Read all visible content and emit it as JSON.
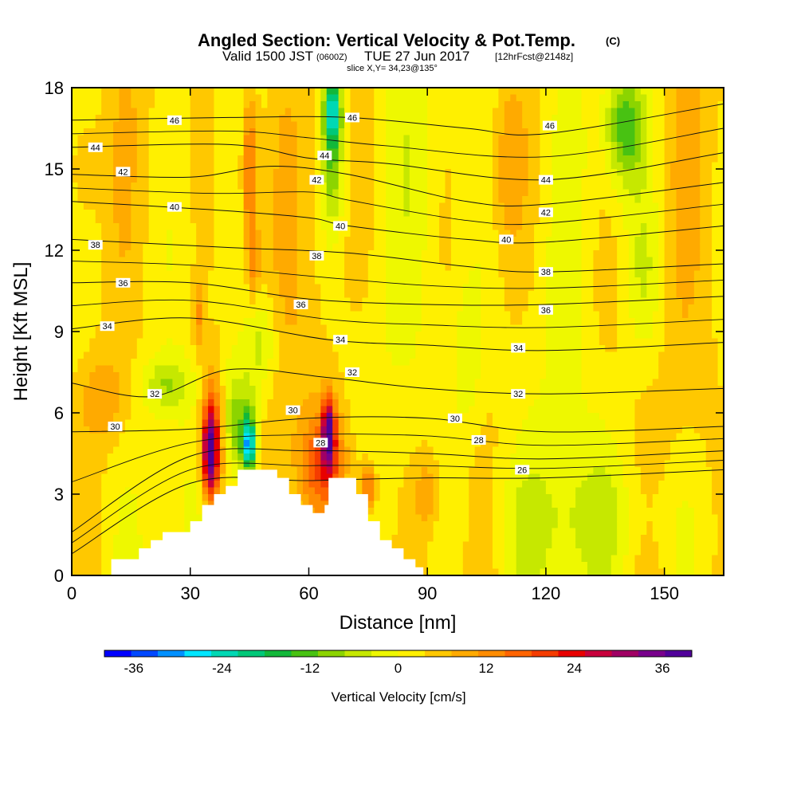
{
  "chart_data": {
    "type": "heatmap",
    "title": "Angled Section: Vertical Velocity & Pot.Temp.",
    "title_suffix": "(C)",
    "subtitle_valid": "Valid 1500 JST",
    "subtitle_zulu": "(0600Z)",
    "subtitle_date": "TUE 27 Jun 2017",
    "subtitle_fcst": "[12hrFcst@2148z]",
    "slice_label": "slice X,Y= 34,23@135°",
    "xlabel": "Distance [nm]",
    "ylabel": "Height [Kft MSL]",
    "xlim": [
      0,
      165
    ],
    "ylim": [
      0,
      18
    ],
    "x_ticks": [
      "0",
      "30",
      "60",
      "90",
      "120",
      "150"
    ],
    "y_ticks": [
      "0",
      "3",
      "6",
      "9",
      "12",
      "15",
      "18"
    ],
    "colorbar": {
      "label": "Vertical Velocity [cm/s]",
      "ticks": [
        "-36",
        "-24",
        "-12",
        "0",
        "12",
        "24",
        "36"
      ],
      "tick_values": [
        -36,
        -24,
        -12,
        0,
        12,
        24,
        36
      ],
      "range": [
        -40,
        40
      ],
      "colors": [
        "#0000ff",
        "#0048ff",
        "#0090ff",
        "#00e6ff",
        "#00d8b4",
        "#00c878",
        "#12b83a",
        "#48c212",
        "#8cd400",
        "#c6e800",
        "#eef800",
        "#fff000",
        "#ffc800",
        "#ffaa00",
        "#ff8c00",
        "#ff6400",
        "#f53c00",
        "#e80000",
        "#c8003c",
        "#a00064",
        "#78008c",
        "#50009a"
      ]
    },
    "terrain": [
      [
        0,
        0
      ],
      [
        10,
        0
      ],
      [
        10,
        0.6
      ],
      [
        17,
        0.6
      ],
      [
        17,
        1.0
      ],
      [
        20,
        1.0
      ],
      [
        20,
        1.3
      ],
      [
        23,
        1.3
      ],
      [
        23,
        1.6
      ],
      [
        30,
        1.6
      ],
      [
        30,
        2.0
      ],
      [
        33,
        2.0
      ],
      [
        33,
        2.6
      ],
      [
        36,
        2.6
      ],
      [
        36,
        3.0
      ],
      [
        39,
        3.0
      ],
      [
        39,
        3.3
      ],
      [
        42,
        3.3
      ],
      [
        42,
        3.9
      ],
      [
        52,
        3.9
      ],
      [
        52,
        3.6
      ],
      [
        55,
        3.6
      ],
      [
        55,
        3.0
      ],
      [
        58,
        3.0
      ],
      [
        58,
        2.6
      ],
      [
        61,
        2.6
      ],
      [
        61,
        2.3
      ],
      [
        64,
        2.3
      ],
      [
        64,
        2.6
      ],
      [
        65,
        2.6
      ],
      [
        65,
        3.6
      ],
      [
        72,
        3.6
      ],
      [
        72,
        3.0
      ],
      [
        75,
        3.0
      ],
      [
        75,
        2.0
      ],
      [
        78,
        2.0
      ],
      [
        78,
        1.3
      ],
      [
        81,
        1.3
      ],
      [
        81,
        1.0
      ],
      [
        84,
        1.0
      ],
      [
        84,
        0.6
      ],
      [
        87,
        0.6
      ],
      [
        87,
        0.3
      ],
      [
        89,
        0.3
      ],
      [
        89,
        0
      ],
      [
        165,
        0
      ]
    ],
    "potential_temperature": [
      {
        "value": 26,
        "points": [
          [
            0,
            0.8
          ],
          [
            30,
            3.4
          ],
          [
            60,
            3.5
          ],
          [
            90,
            3.6
          ],
          [
            120,
            3.6
          ],
          [
            165,
            3.9
          ]
        ]
      },
      {
        "value": 28,
        "points": [
          [
            0,
            1.6
          ],
          [
            30,
            4.4
          ],
          [
            60,
            4.6
          ],
          [
            90,
            4.5
          ],
          [
            120,
            4.3
          ],
          [
            165,
            4.6
          ]
        ]
      },
      {
        "value": 30,
        "points": [
          [
            0,
            5.3
          ],
          [
            30,
            5.4
          ],
          [
            60,
            5.8
          ],
          [
            90,
            5.8
          ],
          [
            120,
            5.3
          ],
          [
            165,
            5.5
          ]
        ]
      },
      {
        "value": 32,
        "points": [
          [
            0,
            7.1
          ],
          [
            20,
            6.6
          ],
          [
            40,
            7.6
          ],
          [
            65,
            7.3
          ],
          [
            90,
            6.9
          ],
          [
            120,
            6.7
          ],
          [
            165,
            6.9
          ]
        ]
      },
      {
        "value": 34,
        "points": [
          [
            0,
            9.1
          ],
          [
            30,
            9.5
          ],
          [
            65,
            8.7
          ],
          [
            90,
            8.5
          ],
          [
            120,
            8.3
          ],
          [
            165,
            8.6
          ]
        ]
      },
      {
        "value": 36,
        "points": [
          [
            0,
            10.8
          ],
          [
            30,
            10.8
          ],
          [
            60,
            10.2
          ],
          [
            90,
            10.0
          ],
          [
            120,
            10.0
          ],
          [
            165,
            10.3
          ]
        ]
      },
      {
        "value": 38,
        "points": [
          [
            0,
            12.4
          ],
          [
            40,
            12.1
          ],
          [
            70,
            11.9
          ],
          [
            100,
            11.4
          ],
          [
            120,
            11.2
          ],
          [
            165,
            11.5
          ]
        ]
      },
      {
        "value": 40,
        "points": [
          [
            0,
            13.8
          ],
          [
            35,
            13.5
          ],
          [
            60,
            13.2
          ],
          [
            70,
            12.9
          ],
          [
            100,
            12.4
          ],
          [
            120,
            12.3
          ],
          [
            165,
            12.9
          ]
        ]
      },
      {
        "value": 42,
        "points": [
          [
            0,
            14.8
          ],
          [
            30,
            14.7
          ],
          [
            50,
            15.1
          ],
          [
            70,
            14.8
          ],
          [
            100,
            13.8
          ],
          [
            120,
            13.7
          ],
          [
            165,
            14.5
          ]
        ]
      },
      {
        "value": 44,
        "points": [
          [
            0,
            15.8
          ],
          [
            40,
            15.9
          ],
          [
            60,
            15.4
          ],
          [
            80,
            15.2
          ],
          [
            120,
            14.6
          ],
          [
            165,
            15.6
          ]
        ]
      },
      {
        "value": 46,
        "points": [
          [
            0,
            16.8
          ],
          [
            40,
            16.9
          ],
          [
            70,
            16.9
          ],
          [
            100,
            16.5
          ],
          [
            120,
            16.3
          ],
          [
            165,
            17.4
          ]
        ]
      }
    ],
    "contour_labels": [
      {
        "text": "46",
        "x": 26,
        "y": 16.8
      },
      {
        "text": "46",
        "x": 71,
        "y": 16.9
      },
      {
        "text": "46",
        "x": 121,
        "y": 16.6
      },
      {
        "text": "44",
        "x": 6,
        "y": 15.8
      },
      {
        "text": "44",
        "x": 64,
        "y": 15.5
      },
      {
        "text": "44",
        "x": 120,
        "y": 14.6
      },
      {
        "text": "42",
        "x": 13,
        "y": 14.9
      },
      {
        "text": "42",
        "x": 62,
        "y": 14.6
      },
      {
        "text": "42",
        "x": 120,
        "y": 13.4
      },
      {
        "text": "40",
        "x": 26,
        "y": 13.6
      },
      {
        "text": "40",
        "x": 68,
        "y": 12.9
      },
      {
        "text": "40",
        "x": 110,
        "y": 12.4
      },
      {
        "text": "38",
        "x": 6,
        "y": 12.2
      },
      {
        "text": "38",
        "x": 62,
        "y": 11.8
      },
      {
        "text": "38",
        "x": 120,
        "y": 11.2
      },
      {
        "text": "36",
        "x": 13,
        "y": 10.8
      },
      {
        "text": "36",
        "x": 58,
        "y": 10.0
      },
      {
        "text": "36",
        "x": 120,
        "y": 9.8
      },
      {
        "text": "34",
        "x": 9,
        "y": 9.2
      },
      {
        "text": "34",
        "x": 68,
        "y": 8.7
      },
      {
        "text": "34",
        "x": 113,
        "y": 8.4
      },
      {
        "text": "32",
        "x": 21,
        "y": 6.7
      },
      {
        "text": "32",
        "x": 71,
        "y": 7.5
      },
      {
        "text": "32",
        "x": 113,
        "y": 6.7
      },
      {
        "text": "30",
        "x": 11,
        "y": 5.5
      },
      {
        "text": "30",
        "x": 56,
        "y": 6.1
      },
      {
        "text": "30",
        "x": 97,
        "y": 5.8
      },
      {
        "text": "28",
        "x": 63,
        "y": 4.9
      },
      {
        "text": "28",
        "x": 103,
        "y": 5.0
      },
      {
        "text": "26",
        "x": 114,
        "y": 3.9
      }
    ],
    "velocity_features": [
      {
        "x": 35,
        "y": 4.5,
        "rx": 1.8,
        "ry": 1.6,
        "value": 30
      },
      {
        "x": 36,
        "y": 5.2,
        "rx": 3.5,
        "ry": 2.6,
        "value": 15
      },
      {
        "x": 45,
        "y": 4.8,
        "rx": 1.4,
        "ry": 0.9,
        "value": -27
      },
      {
        "x": 44,
        "y": 5.2,
        "rx": 3.0,
        "ry": 2.0,
        "value": -16
      },
      {
        "x": 40,
        "y": 5.7,
        "rx": 2.6,
        "ry": 2.2,
        "value": -10
      },
      {
        "x": 65,
        "y": 5.3,
        "rx": 1.6,
        "ry": 1.3,
        "value": 28
      },
      {
        "x": 64,
        "y": 4.2,
        "rx": 6.0,
        "ry": 1.8,
        "value": 14
      },
      {
        "x": 75,
        "y": 3.2,
        "rx": 2.2,
        "ry": 1.0,
        "value": 16
      },
      {
        "x": 45,
        "y": 15.0,
        "rx": 2.0,
        "ry": 2.8,
        "value": 16
      },
      {
        "x": 46,
        "y": 11.5,
        "rx": 1.5,
        "ry": 1.4,
        "value": 10
      },
      {
        "x": 66,
        "y": 15.5,
        "rx": 2.6,
        "ry": 2.6,
        "value": -14
      },
      {
        "x": 66,
        "y": 17.2,
        "rx": 2.2,
        "ry": 1.2,
        "value": -20
      },
      {
        "x": 140,
        "y": 16.5,
        "rx": 5.0,
        "ry": 2.0,
        "value": -15
      },
      {
        "x": 48,
        "y": 8.5,
        "rx": 4.0,
        "ry": 1.8,
        "value": -9
      },
      {
        "x": 24,
        "y": 7.0,
        "rx": 6.0,
        "ry": 1.0,
        "value": -9
      },
      {
        "x": 8,
        "y": 6.5,
        "rx": 6.0,
        "ry": 1.5,
        "value": 7
      },
      {
        "x": 32,
        "y": 9.6,
        "rx": 1.4,
        "ry": 1.3,
        "value": 9
      },
      {
        "x": 90,
        "y": 3.0,
        "rx": 3.0,
        "ry": 1.5,
        "value": 8
      },
      {
        "x": 100,
        "y": 8.0,
        "rx": 4.0,
        "ry": 3.0,
        "value": -6
      },
      {
        "x": 130,
        "y": 2.0,
        "rx": 25.0,
        "ry": 2.2,
        "value": -5
      },
      {
        "x": 145,
        "y": 11.0,
        "rx": 5.0,
        "ry": 3.0,
        "value": -6
      },
      {
        "x": 110,
        "y": 15.0,
        "rx": 4.0,
        "ry": 3.0,
        "value": 6
      },
      {
        "x": 135,
        "y": 9.5,
        "rx": 8.0,
        "ry": 4.0,
        "value": 3
      },
      {
        "x": 3,
        "y": 15.0,
        "rx": 4.0,
        "ry": 2.0,
        "value": 6
      }
    ]
  }
}
